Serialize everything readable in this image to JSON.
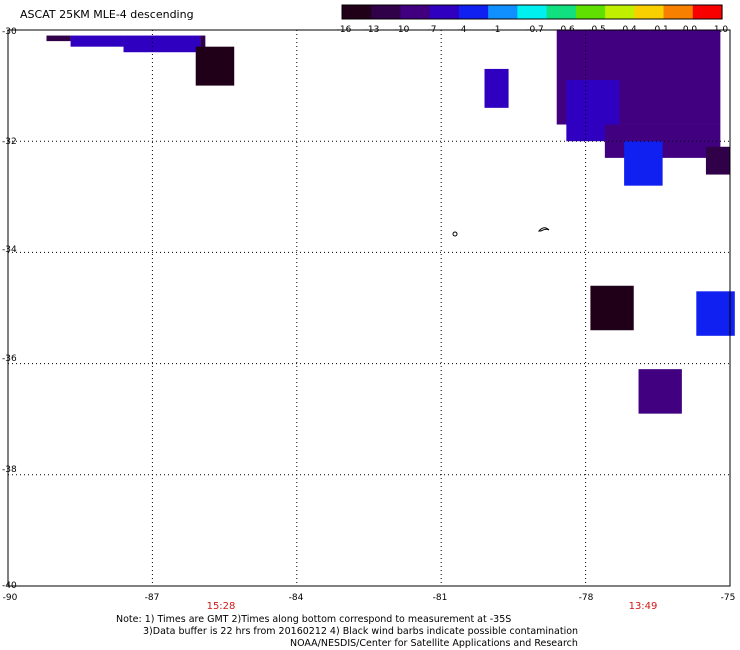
{
  "title": "ASCAT 25KM MLE-4 descending",
  "colorbar": {
    "tick_labels": [
      "-16",
      "-13",
      "-10",
      "-7",
      "-4",
      "-1",
      "-0.7",
      "-0.6",
      "-0.5",
      "-0.4",
      "-0.1",
      "0.0",
      "1.0"
    ],
    "colors": [
      "#200018",
      "#300048",
      "#400080",
      "#3000c0",
      "#1020f0",
      "#1090ff",
      "#00f0f0",
      "#10e080",
      "#60e000",
      "#c0f000",
      "#f8d000",
      "#f88000",
      "#f80000"
    ]
  },
  "map": {
    "lat_labels": [
      "-30",
      "-32",
      "-34",
      "-36",
      "-38",
      "-40"
    ],
    "lon_labels": [
      "-90",
      "-87",
      "-84",
      "-81",
      "-78",
      "-75"
    ],
    "pass_times": [
      "15:28",
      "13:49"
    ],
    "lat_range": [
      -40,
      -30
    ],
    "lon_range": [
      -90,
      -75
    ],
    "mle_cells": [
      {
        "lat": [
          -30.1,
          -30.2
        ],
        "lon": [
          -89.2,
          -88.7
        ],
        "mle": -13
      },
      {
        "lat": [
          -30.1,
          -30.3
        ],
        "lon": [
          -88.7,
          -87.6
        ],
        "mle": -7
      },
      {
        "lat": [
          -30.1,
          -30.4
        ],
        "lon": [
          -87.6,
          -86.0
        ],
        "mle": -5
      },
      {
        "lat": [
          -30.1,
          -30.5
        ],
        "lon": [
          -86.0,
          -85.9
        ],
        "mle": -13
      },
      {
        "lat": [
          -30.3,
          -31.0
        ],
        "lon": [
          -86.1,
          -85.3
        ],
        "mle": -16
      },
      {
        "lat": [
          -30.0,
          -31.7
        ],
        "lon": [
          -78.6,
          -75.2
        ],
        "mle": -10
      },
      {
        "lat": [
          -30.7,
          -31.4
        ],
        "lon": [
          -80.1,
          -79.6
        ],
        "mle": -5
      },
      {
        "lat": [
          -30.9,
          -32.0
        ],
        "lon": [
          -78.4,
          -77.3
        ],
        "mle": -5
      },
      {
        "lat": [
          -31.7,
          -32.3
        ],
        "lon": [
          -77.6,
          -75.2
        ],
        "mle": -10
      },
      {
        "lat": [
          -32.0,
          -32.8
        ],
        "lon": [
          -77.2,
          -76.4
        ],
        "mle": -4
      },
      {
        "lat": [
          -32.1,
          -32.6
        ],
        "lon": [
          -75.5,
          -75.0
        ],
        "mle": -13
      },
      {
        "lat": [
          -34.6,
          -35.4
        ],
        "lon": [
          -77.9,
          -77.0
        ],
        "mle": -16
      },
      {
        "lat": [
          -34.7,
          -35.5
        ],
        "lon": [
          -75.7,
          -74.9
        ],
        "mle": -4
      },
      {
        "lat": [
          -36.1,
          -36.9
        ],
        "lon": [
          -76.9,
          -76.0
        ],
        "mle": -10
      }
    ]
  },
  "note": {
    "line1": "Note: 1) Times are GMT 2)Times along bottom correspond to measurement at -35S",
    "line2": "3)Data buffer is 22 hrs from 20160212 4) Black wind barbs indicate possible contamination",
    "line3": "NOAA/NESDIS/Center for Satellite Applications and Research"
  }
}
